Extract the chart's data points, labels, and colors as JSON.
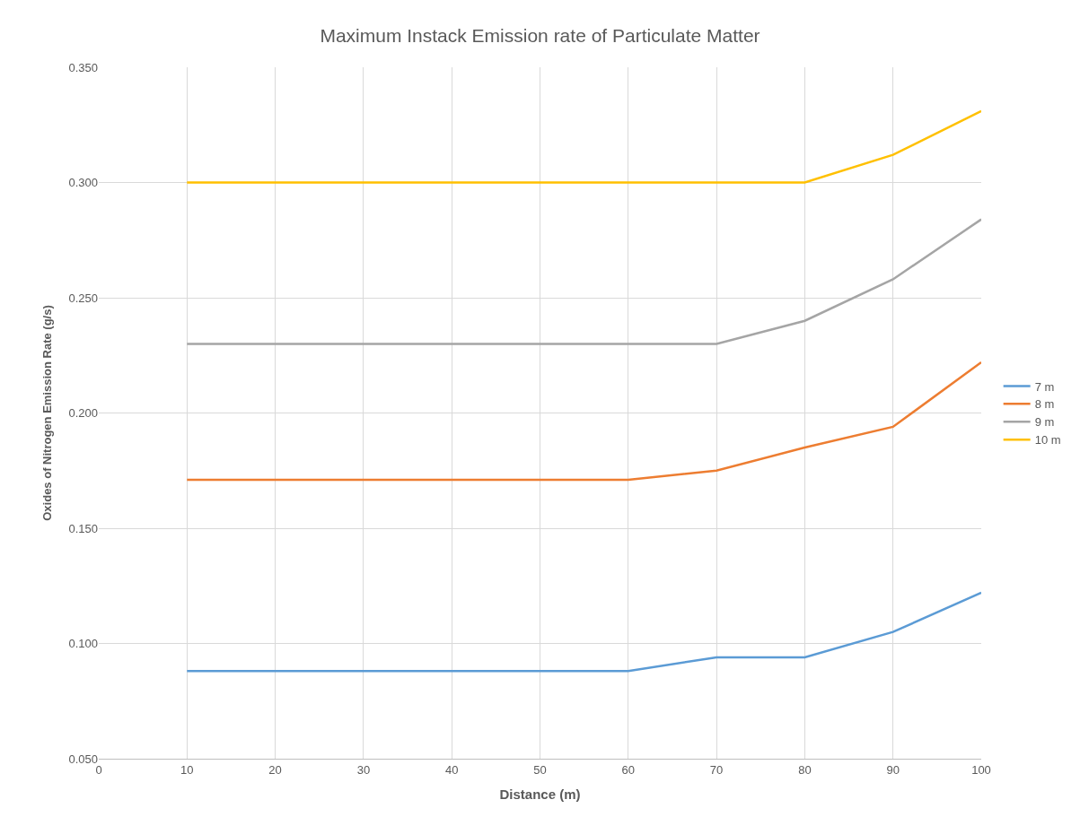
{
  "chart_data": {
    "type": "line",
    "title": "Maximum Instack Emission rate of Particulate Matter",
    "xlabel": "Distance (m)",
    "ylabel": "Oxides of Nitrogen Emission Rate (g/s)",
    "x": [
      10,
      20,
      30,
      40,
      50,
      60,
      70,
      80,
      90,
      100
    ],
    "series": [
      {
        "name": "7 m",
        "color": "#5b9bd5",
        "values": [
          0.088,
          0.088,
          0.088,
          0.088,
          0.088,
          0.088,
          0.094,
          0.094,
          0.105,
          0.122
        ]
      },
      {
        "name": "8 m",
        "color": "#ed7d31",
        "values": [
          0.171,
          0.171,
          0.171,
          0.171,
          0.171,
          0.171,
          0.175,
          0.185,
          0.194,
          0.222
        ]
      },
      {
        "name": "9 m",
        "color": "#a5a5a5",
        "values": [
          0.23,
          0.23,
          0.23,
          0.23,
          0.23,
          0.23,
          0.23,
          0.24,
          0.258,
          0.284
        ]
      },
      {
        "name": "10 m",
        "color": "#ffc000",
        "values": [
          0.3,
          0.3,
          0.3,
          0.3,
          0.3,
          0.3,
          0.3,
          0.3,
          0.312,
          0.331
        ]
      }
    ],
    "xlim": [
      0,
      100
    ],
    "xticks": [
      0,
      10,
      20,
      30,
      40,
      50,
      60,
      70,
      80,
      90,
      100
    ],
    "ylim": [
      0.05,
      0.35
    ],
    "yticks": [
      {
        "value": 0.05,
        "label": "0.050"
      },
      {
        "value": 0.1,
        "label": "0.100"
      },
      {
        "value": 0.15,
        "label": "0.150"
      },
      {
        "value": 0.2,
        "label": "0.200"
      },
      {
        "value": 0.25,
        "label": "0.250"
      },
      {
        "value": 0.3,
        "label": "0.300"
      },
      {
        "value": 0.35,
        "label": "0.350"
      }
    ],
    "grid": true,
    "legend": "right",
    "marker": "none",
    "line_style": "solid"
  }
}
